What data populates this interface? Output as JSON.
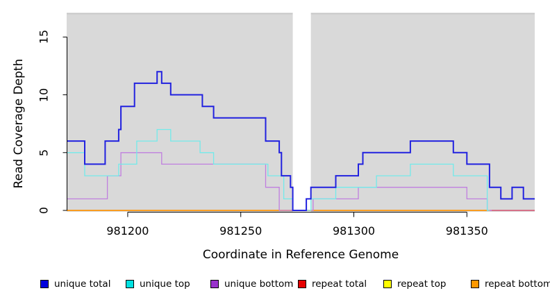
{
  "axes": {
    "x_label": "Coordinate in Reference Genome",
    "y_label": "Read Coverage Depth",
    "x_ticks": [
      "981200",
      "981250",
      "981300",
      "981350"
    ],
    "y_ticks": [
      "0",
      "5",
      "10",
      "15"
    ]
  },
  "legend": {
    "items": [
      {
        "label": "unique total",
        "swatch": "#0000DD"
      },
      {
        "label": "unique top",
        "swatch": "#00E1E1"
      },
      {
        "label": "unique bottom",
        "swatch": "#9932CC"
      },
      {
        "label": "repeat total",
        "swatch": "#E60000"
      },
      {
        "label": "repeat top",
        "swatch": "#FFFF00"
      },
      {
        "label": "repeat bottom",
        "swatch": "#FF9800"
      }
    ]
  },
  "chart_data": {
    "type": "line",
    "subtype": "step-coverage",
    "title": "",
    "xlabel": "Coordinate in Reference Genome",
    "ylabel": "Read Coverage Depth",
    "xlim": [
      981173,
      981380
    ],
    "ylim": [
      0,
      17
    ],
    "x_tick_values": [
      981200,
      981250,
      981300,
      981350
    ],
    "y_tick_values": [
      0,
      5,
      10,
      15
    ],
    "plot_background": "#D9D9D9",
    "grid": "off",
    "legend_position": "bottom",
    "masked_region": {
      "from": 981273,
      "to": 981281
    },
    "series": [
      {
        "name": "repeat total",
        "color": "#D4506E",
        "width": 1.6,
        "end": 981380,
        "points": [
          [
            981173,
            0
          ]
        ]
      },
      {
        "name": "repeat top",
        "color": "#FFEB3B",
        "width": 1.3,
        "end": 981360,
        "points": [
          [
            981173,
            0
          ]
        ]
      },
      {
        "name": "repeat bottom",
        "color": "#FF9800",
        "width": 1.6,
        "end": 981360,
        "points": [
          [
            981173,
            0
          ]
        ]
      },
      {
        "name": "unique bottom",
        "color": "#C07FDF",
        "width": 1.3,
        "end": 981361,
        "points": [
          [
            981173,
            1
          ],
          [
            981191,
            3
          ],
          [
            981197,
            5
          ],
          [
            981215,
            4
          ],
          [
            981261,
            2
          ],
          [
            981267,
            0
          ],
          [
            981282,
            1
          ],
          [
            981302,
            2
          ],
          [
            981350,
            1
          ],
          [
            981359,
            0
          ]
        ]
      },
      {
        "name": "unique top",
        "color": "#72EAEA",
        "width": 1.3,
        "end": 981360,
        "points": [
          [
            981173,
            5
          ],
          [
            981181,
            3
          ],
          [
            981196,
            4
          ],
          [
            981204,
            6
          ],
          [
            981213,
            7
          ],
          [
            981219,
            6
          ],
          [
            981232,
            5
          ],
          [
            981238,
            4
          ],
          [
            981262,
            3
          ],
          [
            981269,
            1
          ],
          [
            981273,
            0
          ],
          [
            981281,
            1
          ],
          [
            981292,
            2
          ],
          [
            981310,
            3
          ],
          [
            981325,
            4
          ],
          [
            981344,
            3
          ],
          [
            981359,
            0
          ]
        ]
      },
      {
        "name": "unique total",
        "color": "#2121DF",
        "width": 2,
        "end": 981380,
        "points": [
          [
            981173,
            6
          ],
          [
            981181,
            4
          ],
          [
            981190,
            6
          ],
          [
            981196,
            7
          ],
          [
            981197,
            9
          ],
          [
            981203,
            11
          ],
          [
            981213,
            12
          ],
          [
            981215,
            11
          ],
          [
            981219,
            10
          ],
          [
            981233,
            9
          ],
          [
            981238,
            8
          ],
          [
            981261,
            6
          ],
          [
            981267,
            5
          ],
          [
            981268,
            3
          ],
          [
            981272,
            2
          ],
          [
            981273,
            0
          ],
          [
            981279,
            1
          ],
          [
            981281,
            2
          ],
          [
            981292,
            3
          ],
          [
            981302,
            4
          ],
          [
            981304,
            5
          ],
          [
            981325,
            6
          ],
          [
            981344,
            5
          ],
          [
            981350,
            4
          ],
          [
            981360,
            2
          ],
          [
            981365,
            1
          ],
          [
            981370,
            2
          ],
          [
            981375,
            1
          ]
        ]
      }
    ]
  }
}
